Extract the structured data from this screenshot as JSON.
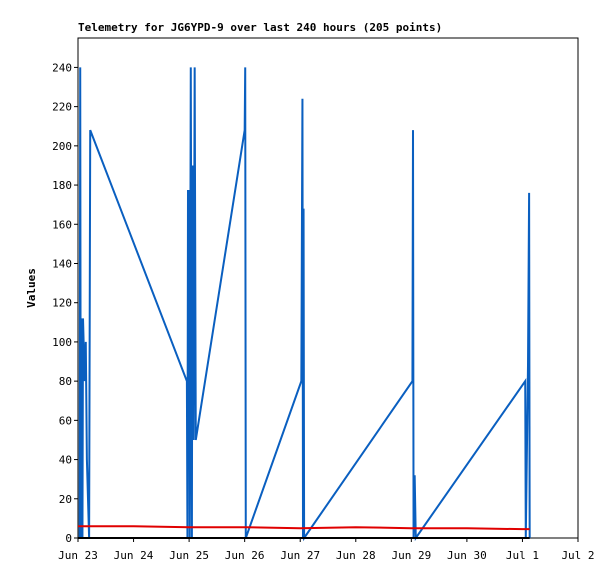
{
  "chart_data": {
    "type": "line",
    "title": "Telemetry for JG6YPD-9 over last 240 hours (205 points)",
    "y_label": "Values",
    "xlim": [
      23,
      32
    ],
    "xticks": [
      {
        "value": 23,
        "label": "Jun 23"
      },
      {
        "value": 24,
        "label": "Jun 24"
      },
      {
        "value": 25,
        "label": "Jun 25"
      },
      {
        "value": 26,
        "label": "Jun 26"
      },
      {
        "value": 27,
        "label": "Jun 27"
      },
      {
        "value": 28,
        "label": "Jun 28"
      },
      {
        "value": 29,
        "label": "Jun 29"
      },
      {
        "value": 30,
        "label": "Jun 30"
      },
      {
        "value": 31,
        "label": "Jul 1"
      },
      {
        "value": 32,
        "label": "Jul 2"
      }
    ],
    "ylim": [
      0,
      255
    ],
    "yticks": [
      0,
      20,
      40,
      60,
      80,
      100,
      120,
      140,
      160,
      180,
      200,
      220,
      240
    ],
    "grid": false,
    "series": [
      {
        "color": "#0a5fc0",
        "x": [
          23.03,
          23.04,
          23.05,
          23.06,
          23.08,
          23.09,
          23.12,
          23.14,
          23.16,
          23.18,
          23.2,
          23.22,
          24.96,
          24.97,
          24.98,
          25.0,
          25.01,
          25.03,
          25.05,
          25.06,
          25.08,
          25.1,
          25.12,
          26.0,
          26.01,
          26.02,
          27.02,
          27.04,
          27.05,
          27.06,
          27.07,
          29.02,
          29.03,
          29.04,
          29.06,
          29.08,
          31.05,
          31.06,
          31.1,
          31.12,
          31.13
        ],
        "values": [
          0,
          240,
          0,
          112,
          0,
          112,
          80,
          100,
          40,
          20,
          0,
          208,
          80,
          0,
          177,
          177,
          0,
          240,
          0,
          190,
          50,
          240,
          50,
          208,
          240,
          0,
          80,
          224,
          0,
          168,
          0,
          80,
          208,
          0,
          32,
          0,
          80,
          0,
          88,
          176,
          0
        ]
      },
      {
        "color": "#e00000",
        "x": [
          23.0,
          24.0,
          25.0,
          26.0,
          27.0,
          28.0,
          29.0,
          30.0,
          31.0,
          31.13
        ],
        "values": [
          6,
          6,
          5.5,
          5.5,
          5,
          5.5,
          5,
          5,
          4.5,
          4.5
        ]
      },
      {
        "color": "#000000",
        "x": [
          23.0,
          31.13
        ],
        "values": [
          0,
          0
        ]
      }
    ]
  }
}
